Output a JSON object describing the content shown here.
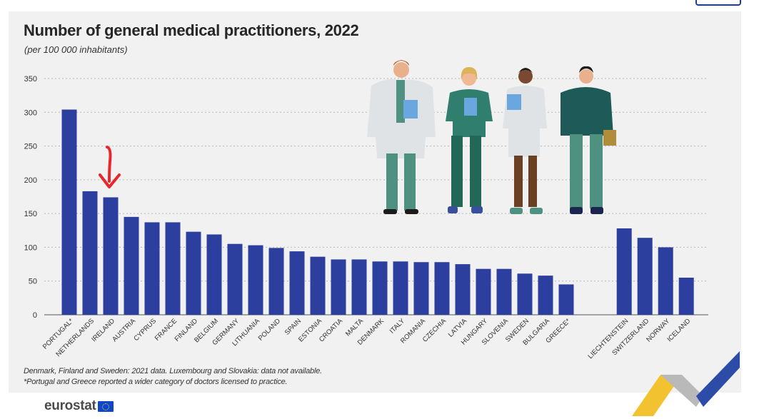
{
  "title": "Number of general medical practitioners, 2022",
  "subtitle": "(per 100 000 inhabitants)",
  "footnotes": [
    "Denmark, Finland and Sweden: 2021 data. Luxembourg and Slovakia: data not available.",
    "*Portugal and Greece reported a wider category of doctors licensed to practice."
  ],
  "brand": "eurostat",
  "colors": {
    "bar": "#2d3f9e",
    "arrow": "#e8262c",
    "grid": "#b8b8b8",
    "panel": "#f1f1f1"
  },
  "icons": [
    "doctor-illustrations-icon",
    "red-arrow-icon",
    "eu-flag-icon"
  ],
  "chart_data": {
    "type": "bar",
    "title": "Number of general medical practitioners, 2022",
    "subtitle": "(per 100 000 inhabitants)",
    "xlabel": "",
    "ylabel": "",
    "ylim": [
      0,
      350
    ],
    "yticks": [
      0,
      50,
      100,
      150,
      200,
      250,
      300,
      350
    ],
    "grid": true,
    "highlighted_category": "IRELAND",
    "categories": [
      "PORTUGAL*",
      "NETHERLANDS",
      "IRELAND",
      "AUSTRIA",
      "CYPRUS",
      "FRANCE",
      "FINLAND",
      "BELGIUM",
      "GERMANY",
      "LITHUANIA",
      "POLAND",
      "SPAIN",
      "ESTONIA",
      "CROATIA",
      "MALTA",
      "DENMARK",
      "ITALY",
      "ROMANIA",
      "CZECHIA",
      "LATVIA",
      "HUNGARY",
      "SLOVENIA",
      "SWEDEN",
      "BULGARIA",
      "GREECE*",
      "LIECHTENSTEIN",
      "SWITZERLAND",
      "NORWAY",
      "ICELAND"
    ],
    "groups": [
      25,
      4
    ],
    "values": [
      304,
      183,
      174,
      145,
      137,
      137,
      123,
      119,
      105,
      103,
      99,
      94,
      86,
      82,
      82,
      79,
      79,
      78,
      78,
      75,
      68,
      68,
      61,
      58,
      45,
      128,
      114,
      100,
      55
    ]
  }
}
